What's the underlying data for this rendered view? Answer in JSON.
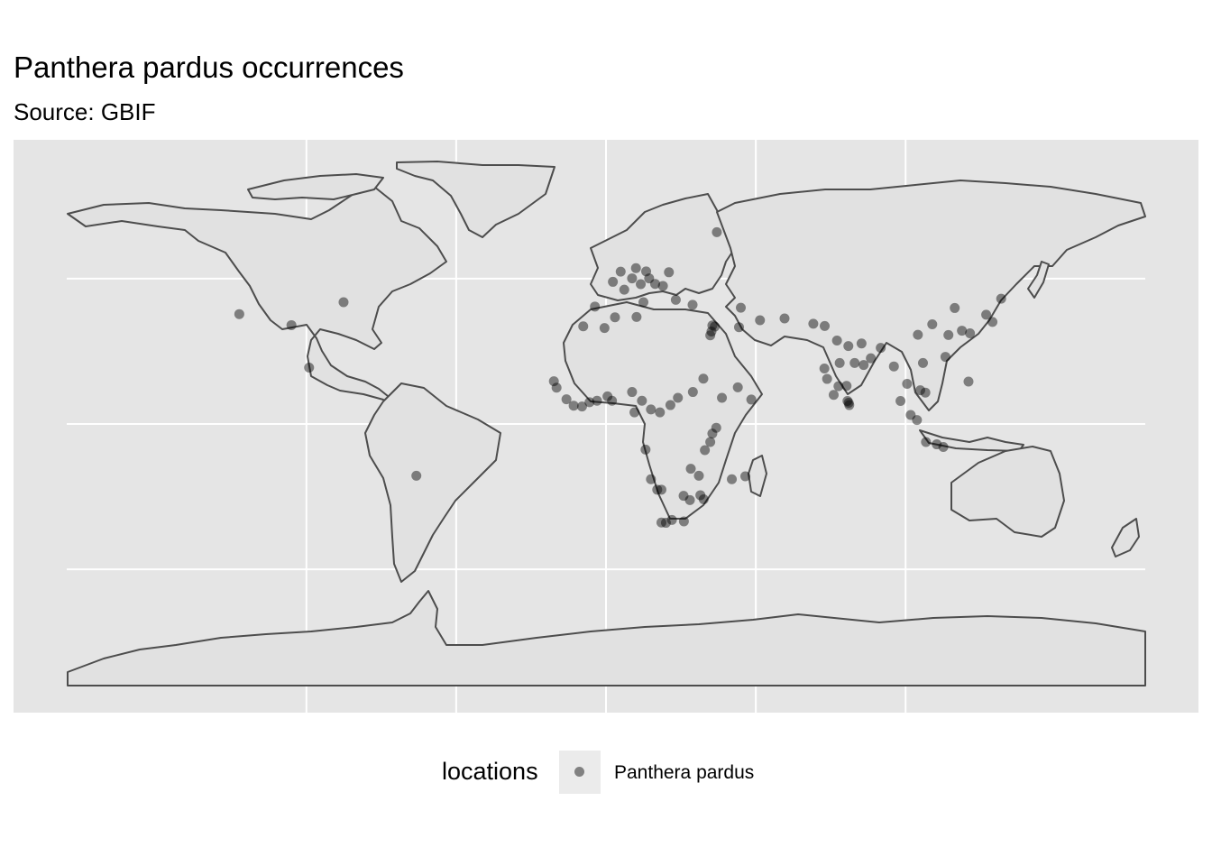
{
  "title": "Panthera pardus occurrences",
  "subtitle": "Source: GBIF",
  "legend": {
    "title": "locations",
    "label": "Panthera pardus"
  },
  "colors": {
    "panel": "#e5e5e5",
    "land": "#e1e1e1",
    "border": "#4d4d4d",
    "grid": "#ffffff",
    "point": "#000000",
    "legend_key": "#ebebeb"
  },
  "chart_data": {
    "type": "scatter",
    "map_projection": "equirectangular",
    "series": [
      {
        "name": "Panthera pardus",
        "points": [
          [
            -122.4,
            37.8
          ],
          [
            -105.0,
            34.0
          ],
          [
            -87.6,
            41.9
          ],
          [
            -99.1,
            19.4
          ],
          [
            -63.3,
            -17.8
          ],
          [
            -3.7,
            40.4
          ],
          [
            2.3,
            48.9
          ],
          [
            4.9,
            52.4
          ],
          [
            8.7,
            50.1
          ],
          [
            13.4,
            52.5
          ],
          [
            14.4,
            50.1
          ],
          [
            16.4,
            48.2
          ],
          [
            11.6,
            48.1
          ],
          [
            10.0,
            53.6
          ],
          [
            12.5,
            41.9
          ],
          [
            21.0,
            52.2
          ],
          [
            19.0,
            47.5
          ],
          [
            6.1,
            46.2
          ],
          [
            23.3,
            42.7
          ],
          [
            28.9,
            41.0
          ],
          [
            3.0,
            36.7
          ],
          [
            -7.6,
            33.6
          ],
          [
            -17.4,
            14.7
          ],
          [
            -16.5,
            12.5
          ],
          [
            -13.2,
            8.5
          ],
          [
            -10.8,
            6.3
          ],
          [
            -8.0,
            6.0
          ],
          [
            -5.5,
            7.5
          ],
          [
            -3.0,
            8.0
          ],
          [
            0.5,
            9.5
          ],
          [
            2.0,
            8.0
          ],
          [
            8.7,
            11.0
          ],
          [
            12.0,
            8.0
          ],
          [
            15.0,
            5.0
          ],
          [
            18.0,
            4.0
          ],
          [
            21.5,
            6.5
          ],
          [
            24.0,
            9.0
          ],
          [
            29.0,
            11.0
          ],
          [
            32.5,
            15.6
          ],
          [
            38.7,
            9.0
          ],
          [
            36.8,
            -1.3
          ],
          [
            35.5,
            -3.3
          ],
          [
            34.8,
            -6.2
          ],
          [
            33.0,
            -9.0
          ],
          [
            28.3,
            -15.4
          ],
          [
            31.0,
            -17.8
          ],
          [
            25.9,
            -24.7
          ],
          [
            18.5,
            -22.6
          ],
          [
            17.1,
            -22.6
          ],
          [
            15.0,
            -19.0
          ],
          [
            13.2,
            -8.8
          ],
          [
            18.5,
            -33.9
          ],
          [
            20.0,
            -34.0
          ],
          [
            22.0,
            -33.0
          ],
          [
            26.0,
            -33.5
          ],
          [
            28.0,
            -26.2
          ],
          [
            31.5,
            -24.5
          ],
          [
            32.6,
            -25.9
          ],
          [
            35.2,
            31.8
          ],
          [
            34.8,
            30.5
          ],
          [
            35.5,
            33.9
          ],
          [
            36.3,
            33.5
          ],
          [
            44.4,
            33.3
          ],
          [
            51.4,
            35.7
          ],
          [
            59.6,
            36.3
          ],
          [
            69.2,
            34.5
          ],
          [
            73.0,
            33.7
          ],
          [
            77.1,
            28.7
          ],
          [
            80.9,
            26.8
          ],
          [
            85.3,
            27.7
          ],
          [
            88.4,
            22.6
          ],
          [
            72.9,
            19.1
          ],
          [
            73.8,
            15.5
          ],
          [
            77.6,
            13.0
          ],
          [
            80.3,
            13.1
          ],
          [
            80.6,
            7.9
          ],
          [
            81.0,
            7.3
          ],
          [
            81.2,
            6.5
          ],
          [
            76.0,
            10.0
          ],
          [
            78.0,
            21.0
          ],
          [
            83.0,
            21.0
          ],
          [
            86.0,
            20.3
          ],
          [
            91.7,
            26.2
          ],
          [
            96.1,
            19.8
          ],
          [
            100.5,
            13.8
          ],
          [
            101.7,
            3.1
          ],
          [
            98.3,
            7.9
          ],
          [
            104.9,
            11.6
          ],
          [
            105.8,
            21.0
          ],
          [
            106.6,
            10.8
          ],
          [
            103.8,
            1.35
          ],
          [
            110.4,
            -7.0
          ],
          [
            106.8,
            -6.2
          ],
          [
            112.6,
            -7.9
          ],
          [
            114.3,
            30.6
          ],
          [
            116.4,
            39.9
          ],
          [
            118.8,
            32.1
          ],
          [
            121.5,
            31.2
          ],
          [
            104.1,
            30.7
          ],
          [
            108.9,
            34.3
          ],
          [
            113.3,
            23.1
          ],
          [
            121.0,
            14.6
          ],
          [
            126.9,
            37.6
          ],
          [
            129.0,
            35.1
          ],
          [
            131.9,
            43.1
          ],
          [
            9.5,
            4.0
          ],
          [
            44.0,
            12.6
          ],
          [
            48.5,
            8.4
          ],
          [
            42.0,
            -19.0
          ],
          [
            46.5,
            -18.0
          ],
          [
            37.0,
            66.0
          ],
          [
            45.0,
            40.0
          ],
          [
            -0.5,
            33.0
          ],
          [
            10.2,
            36.8
          ]
        ]
      }
    ],
    "graticule_lon": [
      -100,
      -50,
      0,
      50,
      100
    ],
    "graticule_lat": [
      -50,
      0,
      50
    ],
    "xlim": [
      -180,
      180
    ],
    "ylim": [
      -90,
      90
    ]
  }
}
